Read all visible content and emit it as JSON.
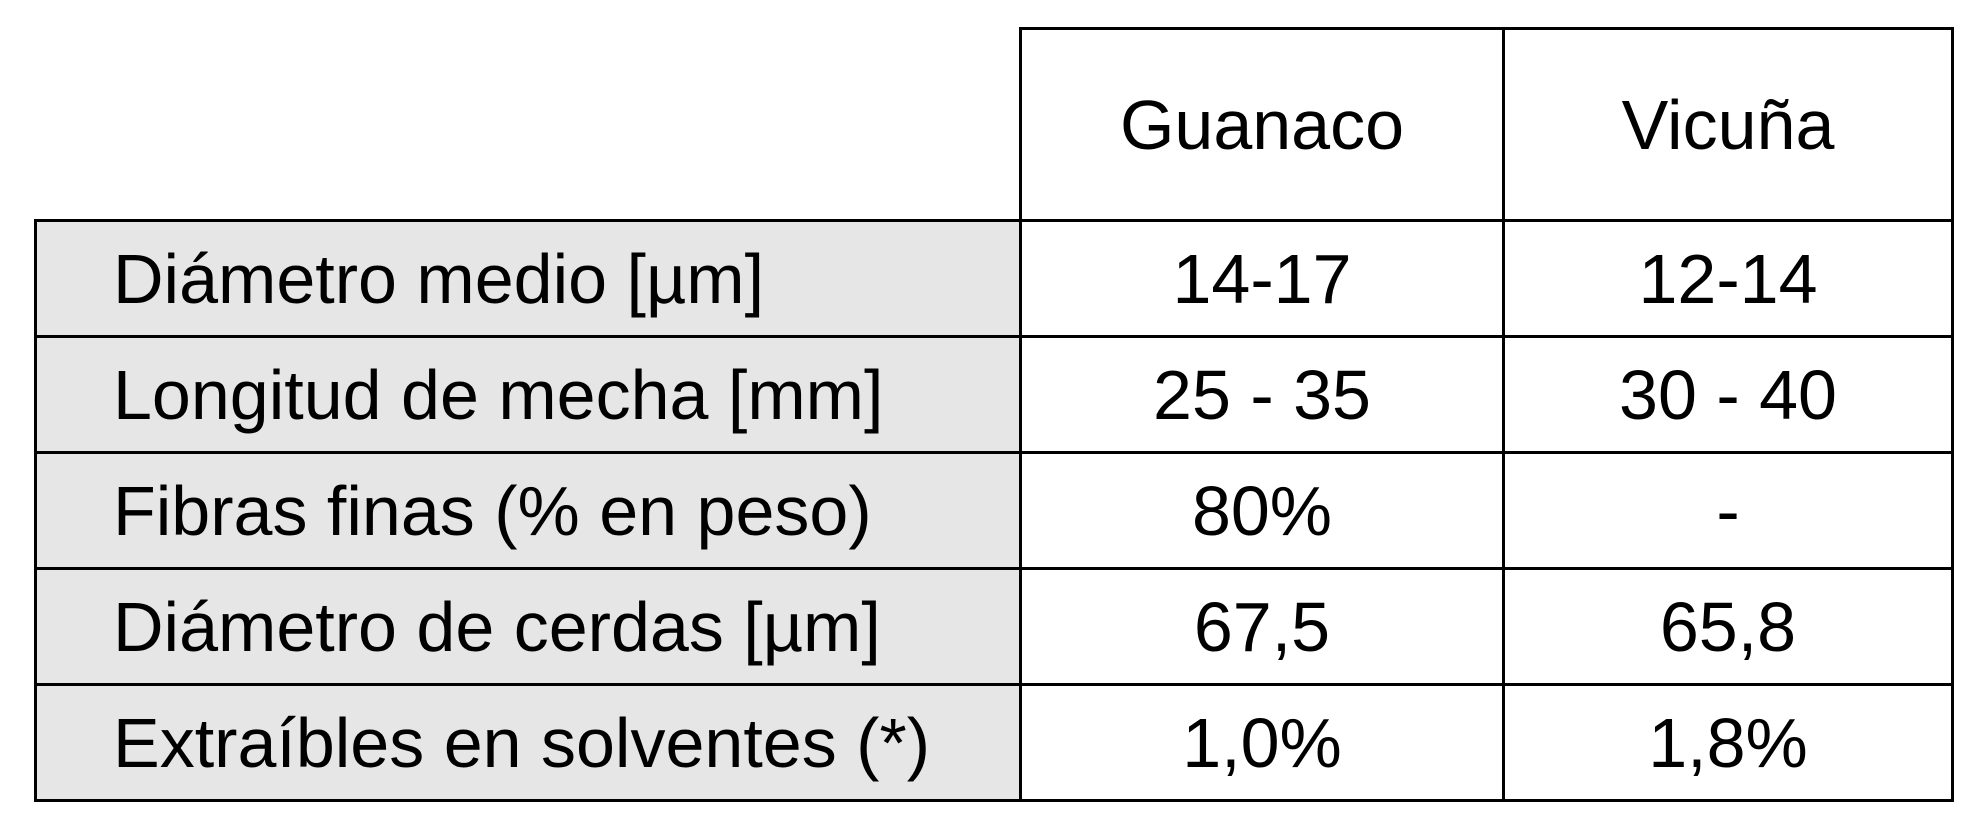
{
  "table": {
    "columns": [
      "Guanaco",
      "Vicuña"
    ],
    "rows": [
      {
        "label": "Diámetro medio [µm]",
        "values": [
          "14-17",
          "12-14"
        ]
      },
      {
        "label": "Longitud de mecha [mm]",
        "values": [
          "25 - 35",
          "30 - 40"
        ]
      },
      {
        "label": "Fibras finas (% en peso)",
        "values": [
          "80%",
          "-"
        ]
      },
      {
        "label": "Diámetro de cerdas [µm]",
        "values": [
          "67,5",
          "65,8"
        ]
      },
      {
        "label": "Extraíbles en solventes (*)",
        "values": [
          "1,0%",
          "1,8%"
        ]
      }
    ]
  },
  "colors": {
    "row_header_bg": "#e6e6e6",
    "cell_bg": "#ffffff",
    "border": "#000000"
  }
}
